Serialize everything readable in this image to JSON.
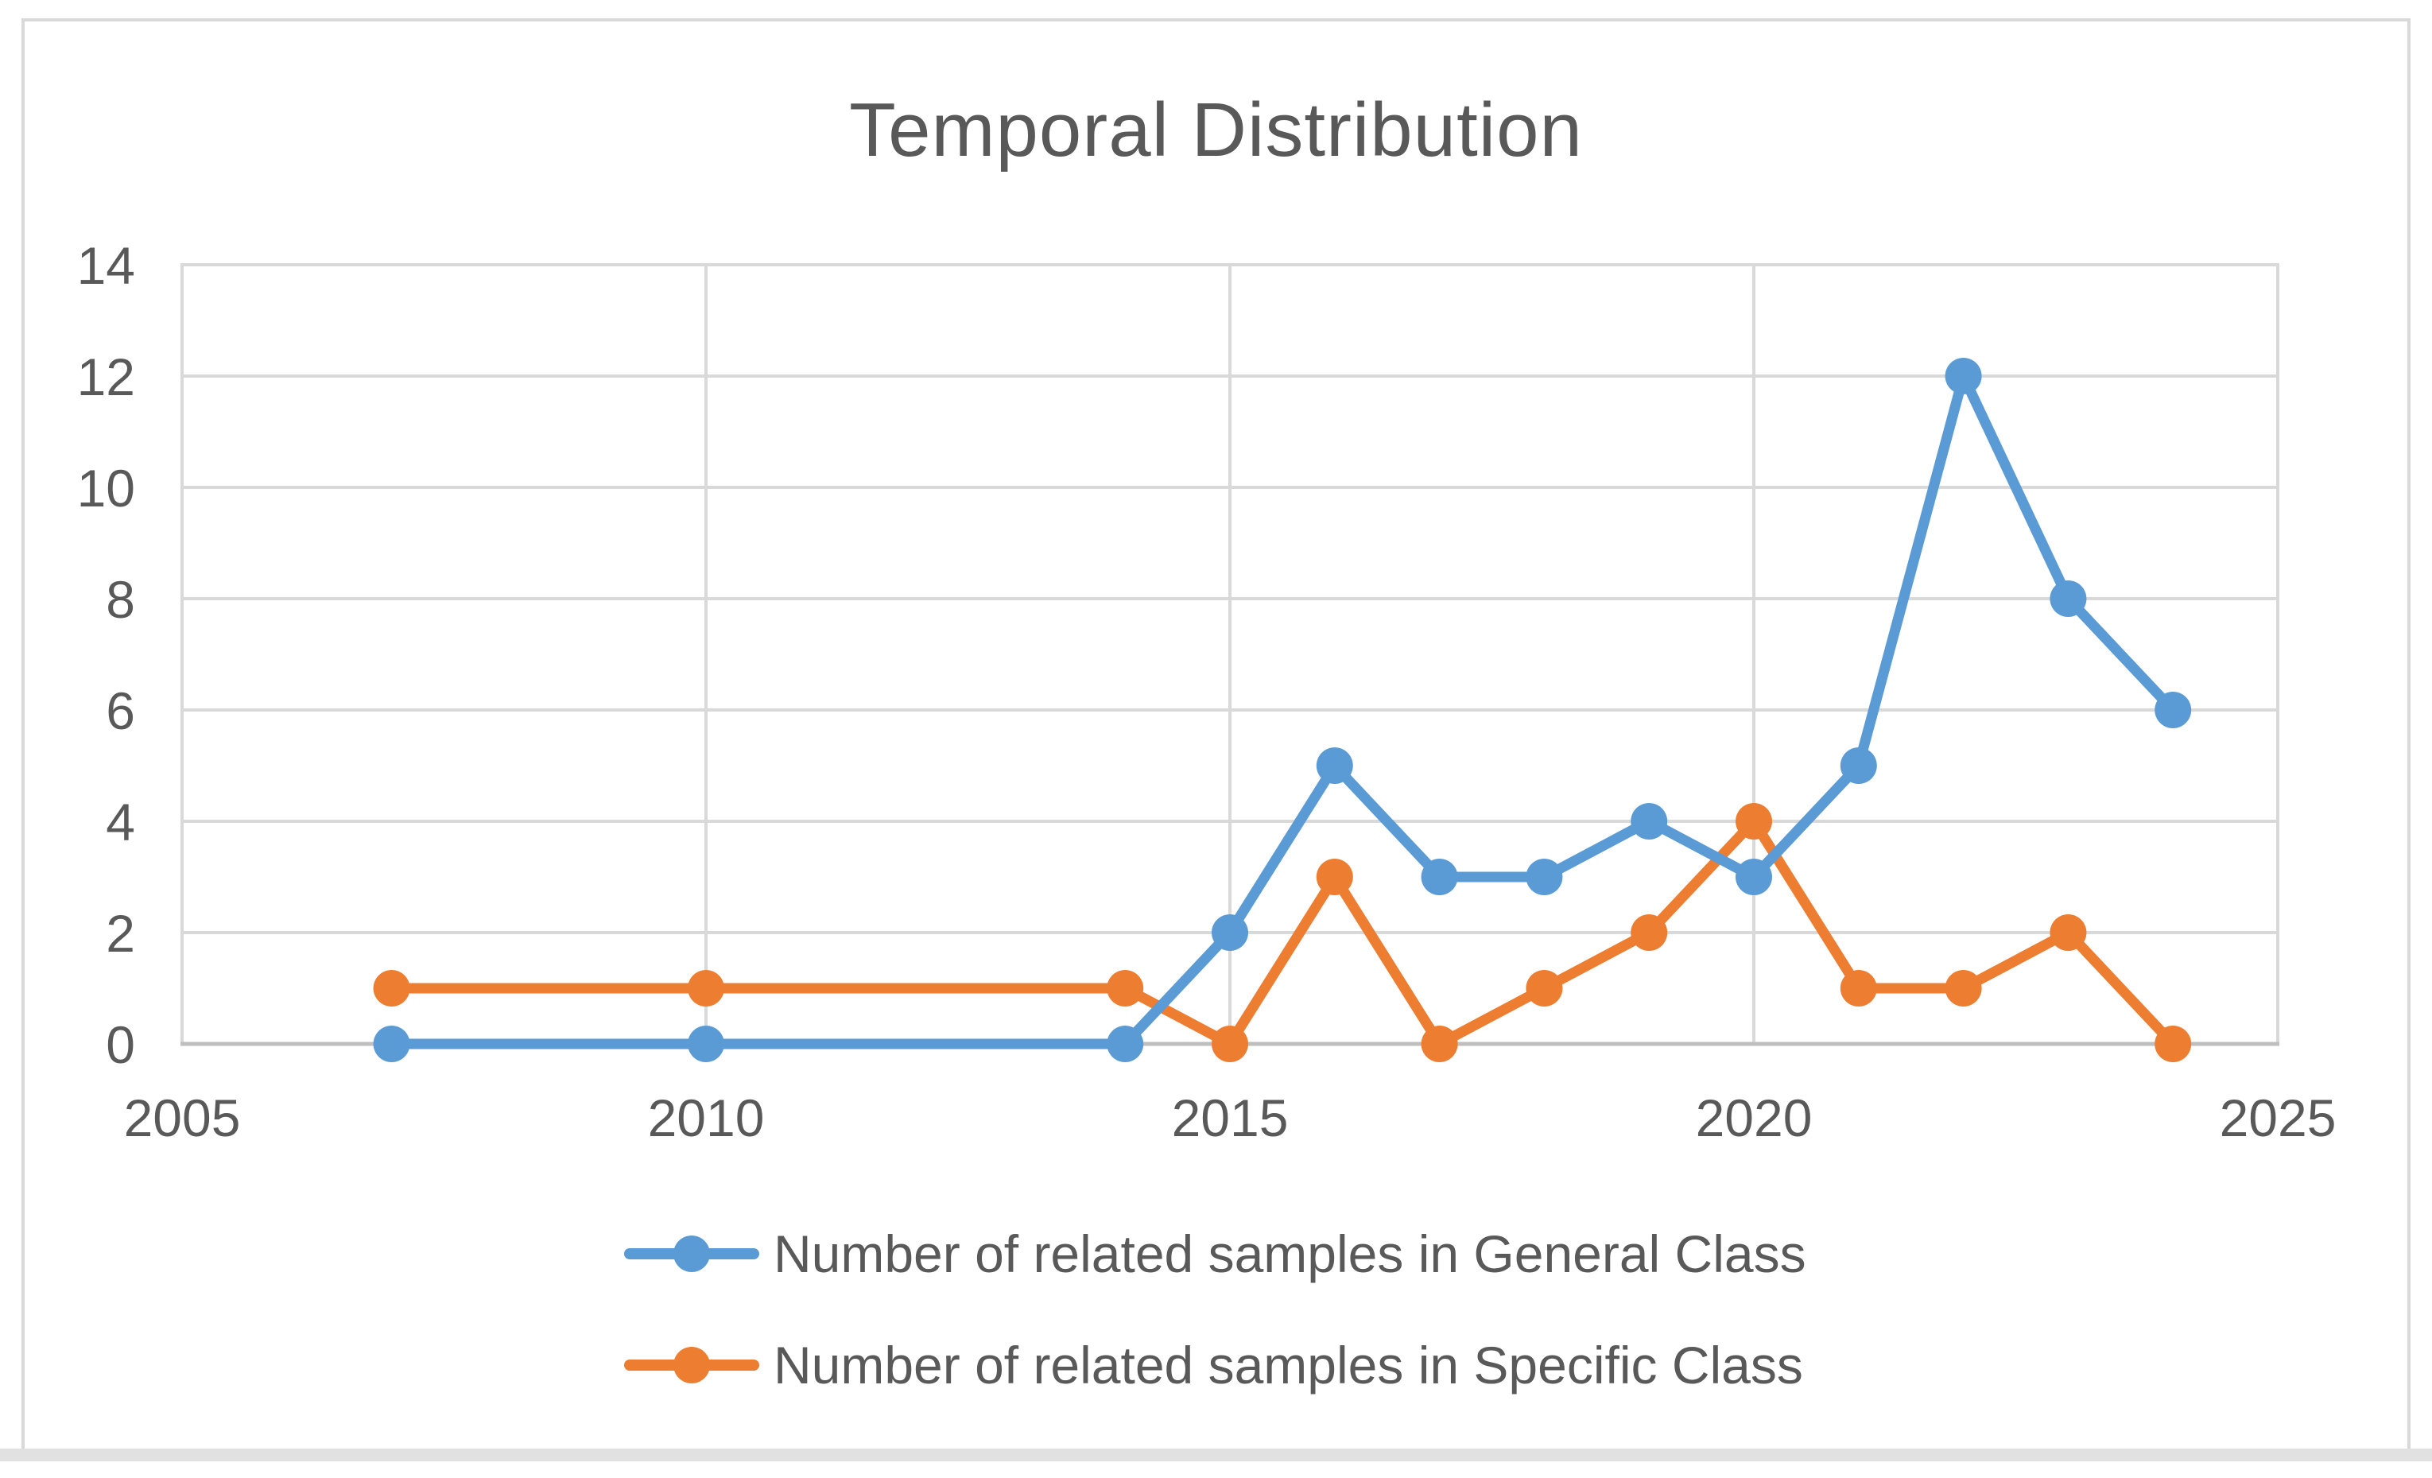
{
  "page": {
    "background_color": "#ffffff",
    "frame_border_color": "#D9D9D9",
    "bottom_strip_color": "#E1E1E1"
  },
  "chart_data": {
    "type": "line",
    "title": "Temporal Distribution",
    "x": [
      2007,
      2010,
      2014,
      2015,
      2016,
      2017,
      2018,
      2019,
      2020,
      2021,
      2022,
      2023,
      2024
    ],
    "series": [
      {
        "name": "Number of related samples in General Class",
        "color": "#5B9BD5",
        "values": [
          0,
          0,
          0,
          2,
          5,
          3,
          3,
          4,
          3,
          5,
          12,
          8,
          6
        ]
      },
      {
        "name": "Number of related samples in Specific Class",
        "color": "#ED7D31",
        "values": [
          1,
          1,
          1,
          0,
          3,
          0,
          1,
          2,
          4,
          1,
          1,
          2,
          0
        ]
      }
    ],
    "xlim": [
      2005,
      2025
    ],
    "ylim": [
      0,
      14
    ],
    "x_ticks": [
      2005,
      2010,
      2015,
      2020,
      2025
    ],
    "y_ticks": [
      0,
      2,
      4,
      6,
      8,
      10,
      12,
      14
    ],
    "grid": true,
    "legend_position": "bottom-left",
    "text_color": "#595959",
    "gridline_color": "#D9D9D9",
    "axis_line_color": "#BFBFBF",
    "plot_border_color": "#D9D9D9"
  }
}
